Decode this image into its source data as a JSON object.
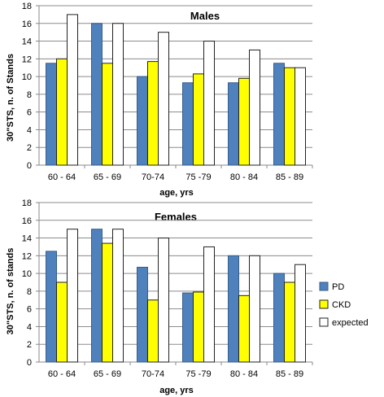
{
  "chart_data": [
    {
      "type": "bar",
      "title": "Males",
      "xlabel": "age, yrs",
      "ylabel": "30\"STS, n. of Stands",
      "ylim": [
        0,
        18
      ],
      "yticks": [
        0,
        2,
        4,
        6,
        8,
        10,
        12,
        14,
        16,
        18
      ],
      "grid": true,
      "categories": [
        "60 - 64",
        "65 - 69",
        "70-74",
        "75 -79",
        "80 - 84",
        "85 - 89"
      ],
      "series": [
        {
          "name": "PD",
          "color": "#4f81bd",
          "values": [
            11.5,
            16,
            10,
            9.3,
            9.3,
            11.5
          ]
        },
        {
          "name": "CKD",
          "color": "#ffff00",
          "values": [
            12,
            11.5,
            11.7,
            10.3,
            9.8,
            11
          ]
        },
        {
          "name": "expected",
          "color": "#ffffff",
          "values": [
            17,
            16,
            15,
            14,
            13,
            11
          ]
        }
      ]
    },
    {
      "type": "bar",
      "title": "Females",
      "xlabel": "age, yrs",
      "ylabel": "30\"STS, n. of stands",
      "ylim": [
        0,
        18
      ],
      "yticks": [
        0,
        2,
        4,
        6,
        8,
        10,
        12,
        14,
        16,
        18
      ],
      "grid": true,
      "legend_position": "right",
      "categories": [
        "60 - 64",
        "65 - 69",
        "70-74",
        "75 -79",
        "80 - 84",
        "85 - 89"
      ],
      "series": [
        {
          "name": "PD",
          "color": "#4f81bd",
          "values": [
            12.5,
            15,
            10.7,
            7.8,
            12,
            10
          ]
        },
        {
          "name": "CKD",
          "color": "#ffff00",
          "values": [
            9,
            13.4,
            7,
            7.9,
            7.5,
            9
          ]
        },
        {
          "name": "expected",
          "color": "#ffffff",
          "values": [
            15,
            15,
            14,
            13,
            12,
            11
          ]
        }
      ]
    }
  ]
}
